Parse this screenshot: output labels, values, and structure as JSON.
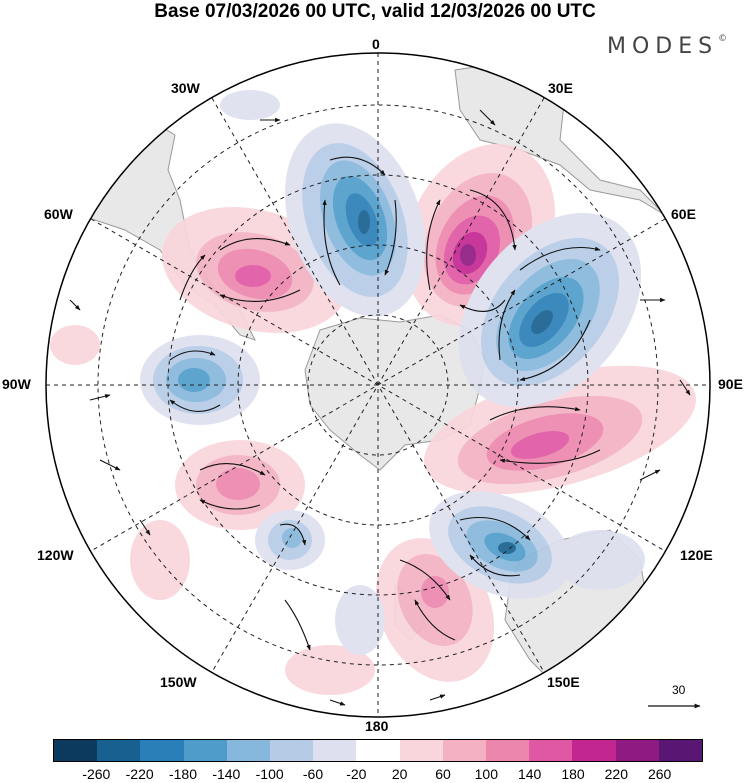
{
  "title": "Base 07/03/2026 00 UTC, valid 12/03/2026 00 UTC",
  "brand": "MODES",
  "brand_mark": "©",
  "longitude_labels": {
    "n": "0",
    "nne": "30E",
    "ne": "60E",
    "e": "90E",
    "se": "120E",
    "sse": "150E",
    "s": "180",
    "ssw": "150W",
    "sw": "120W",
    "w": "90W",
    "nw": "60W",
    "nnw": "30W"
  },
  "reference_vector_label": "30",
  "colorbar": {
    "colors": [
      "#0b3a5e",
      "#17608f",
      "#2a7fb8",
      "#4f9ccb",
      "#86b7dc",
      "#b5cbe6",
      "#dfe0ef",
      "#ffffff",
      "#f9d6dc",
      "#f3b1c3",
      "#ec86ad",
      "#e057a4",
      "#c22791",
      "#8e1a82",
      "#5a1673"
    ],
    "tick_labels": [
      "-260",
      "-220",
      "-180",
      "-140",
      "-100",
      "-60",
      "-20",
      "20",
      "60",
      "100",
      "140",
      "180",
      "220",
      "260"
    ]
  },
  "palette": {
    "land": "#e8e8e8",
    "land_edge": "#9a9a9a",
    "grid": "#222222",
    "arrow": "#111111"
  }
}
